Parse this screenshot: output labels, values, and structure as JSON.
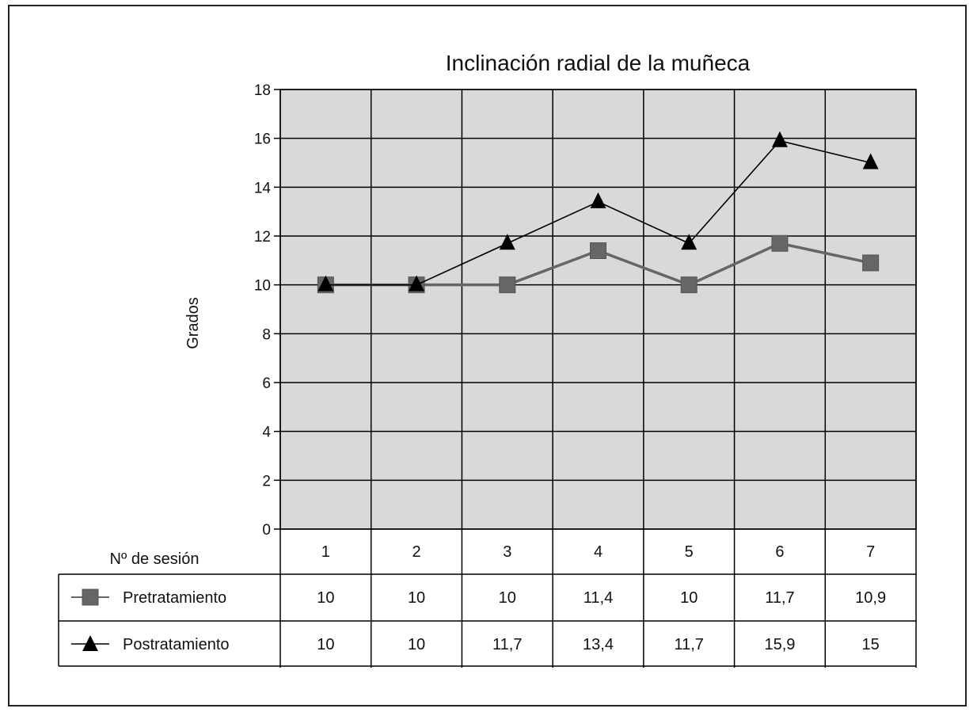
{
  "chart_data": {
    "type": "line",
    "title": "Inclinación radial de la muñeca",
    "ylabel": "Grados",
    "xlabel": "Nº de sesión",
    "ylim": [
      0,
      18
    ],
    "y_ticks": [
      "0",
      "2",
      "4",
      "6",
      "8",
      "10",
      "12",
      "14",
      "16",
      "18"
    ],
    "grid": true,
    "categories": [
      "1",
      "2",
      "3",
      "4",
      "5",
      "6",
      "7"
    ],
    "series": [
      {
        "name": "Pretratamiento",
        "marker": "square",
        "color": "#666666",
        "values": [
          10,
          10,
          10,
          11.4,
          10,
          11.7,
          10.9
        ],
        "labels": [
          "10",
          "10",
          "10",
          "11,4",
          "10",
          "11,7",
          "10,9"
        ]
      },
      {
        "name": "Postratamiento",
        "marker": "triangle",
        "color": "#000000",
        "values": [
          10,
          10,
          11.7,
          13.4,
          11.7,
          15.9,
          15
        ],
        "labels": [
          "10",
          "10",
          "11,7",
          "13,4",
          "11,7",
          "15,9",
          "15"
        ]
      }
    ],
    "plot_background": "#d9d9d9"
  }
}
